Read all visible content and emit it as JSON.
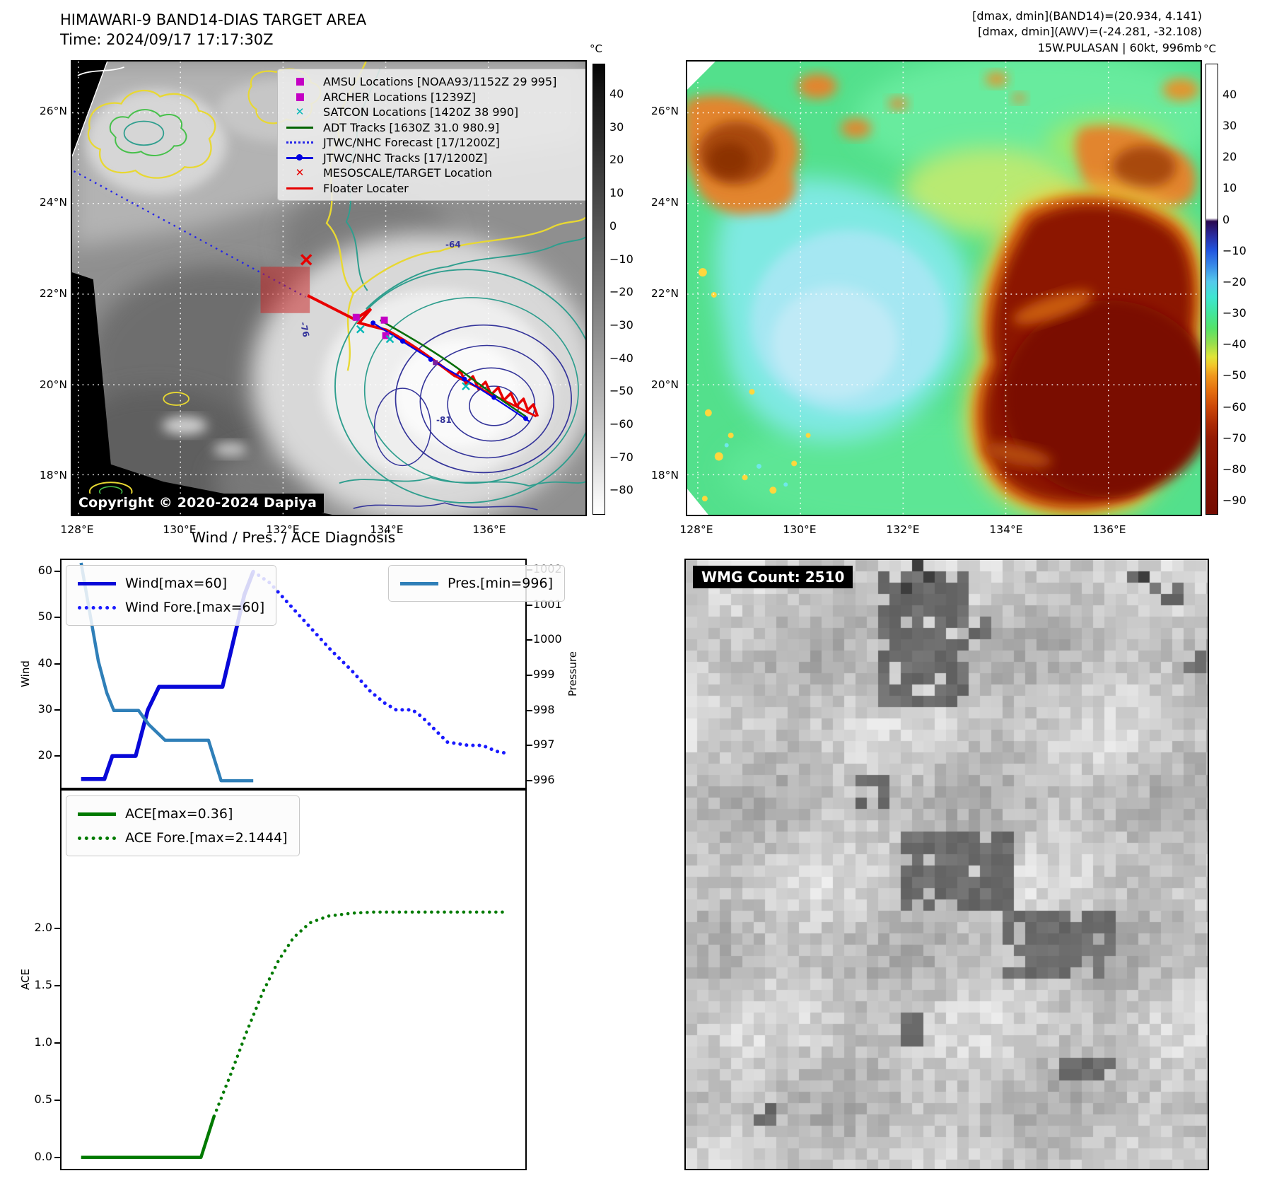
{
  "header_left": {
    "title": "HIMAWARI-9 BAND14-DIAS TARGET AREA",
    "time": "Time: 2024/09/17 17:17:30Z"
  },
  "header_right": {
    "line1": "[dmax, dmin](BAND14)=(20.934, 4.141)",
    "line2": "[dmax, dmin](AWV)=(-24.281, -32.108)",
    "line3": "15W.PULASAN | 60kt, 996mb"
  },
  "map_left": {
    "legend": [
      {
        "label": "AMSU Locations [NOAA93/1152Z 29 995]",
        "marker": "square",
        "color": "#c400c4"
      },
      {
        "label": "ARCHER Locations [1239Z]",
        "marker": "square",
        "color": "#c400c4"
      },
      {
        "label": "SATCON Locations [1420Z 38 990]",
        "marker": "x",
        "color": "#00b7b7"
      },
      {
        "label": "ADT Tracks [1630Z 31.0 980.9]",
        "marker": "line",
        "color": "#006400"
      },
      {
        "label": "JTWC/NHC Forecast [17/1200Z]",
        "marker": "dotted-line",
        "color": "#2525e8"
      },
      {
        "label": "JTWC/NHC Tracks [17/1200Z]",
        "marker": "line-dot",
        "color": "#0000e0"
      },
      {
        "label": "MESOSCALE/TARGET Location",
        "marker": "x",
        "color": "#e60000"
      },
      {
        "label": "Floater Locater",
        "marker": "line",
        "color": "#e60000"
      }
    ],
    "copyright": "Copyright © 2020-2024 Dapiya",
    "lat_ticks": [
      "26°N",
      "24°N",
      "22°N",
      "20°N",
      "18°N"
    ],
    "lon_ticks": [
      "128°E",
      "130°E",
      "132°E",
      "134°E",
      "136°E"
    ],
    "colorbar_unit": "°C",
    "colorbar_ticks": [
      "40",
      "30",
      "20",
      "10",
      "0",
      "−10",
      "−20",
      "−30",
      "−40",
      "−50",
      "−60",
      "−70",
      "−80"
    ],
    "contour_labels": [
      "-64",
      "-81",
      "-76"
    ]
  },
  "map_right": {
    "lat_ticks": [
      "26°N",
      "24°N",
      "22°N",
      "20°N",
      "18°N"
    ],
    "lon_ticks": [
      "128°E",
      "130°E",
      "132°E",
      "134°E",
      "136°E"
    ],
    "colorbar_unit": "°C",
    "colorbar_ticks": [
      "40",
      "30",
      "20",
      "10",
      "0",
      "−10",
      "−20",
      "−30",
      "−40",
      "−50",
      "−60",
      "−70",
      "−80",
      "−90"
    ]
  },
  "wmg": {
    "label": "WMG Count: 2510"
  },
  "chart_data": [
    {
      "type": "line",
      "title": "Wind / Pres. / ACE Diagnosis",
      "subplot": "wind-pressure",
      "ylabel_left": "Wind",
      "ylabel_right": "Pressure",
      "xlim": [
        0,
        1
      ],
      "ylim_left": [
        12.8,
        62.8
      ],
      "ylim_right": [
        995.76,
        1002.32
      ],
      "yticks_left": [
        20,
        30,
        40,
        50,
        60
      ],
      "yticks_right": [
        996,
        997,
        998,
        999,
        1000,
        1001,
        1002
      ],
      "grid": false,
      "legend_position": "upper-left and upper-right",
      "series": [
        {
          "name": "Wind[max=60]",
          "axis": "left",
          "style": "solid",
          "color": "#0808d8",
          "width": 5.5,
          "x": [
            0.045,
            0.095,
            0.112,
            0.162,
            0.188,
            0.212,
            0.348,
            0.395,
            0.414
          ],
          "y": [
            15,
            15,
            20,
            20,
            30,
            35,
            35,
            55,
            60
          ]
        },
        {
          "name": "Wind Fore.[max=60]",
          "axis": "left",
          "style": "dotted",
          "color": "#1a1aff",
          "width": 5,
          "x": [
            0.414,
            0.45,
            0.49,
            0.535,
            0.58,
            0.625,
            0.665,
            0.695,
            0.72,
            0.755,
            0.775,
            0.8,
            0.83,
            0.875,
            0.905,
            0.935,
            0.955
          ],
          "y": [
            60,
            57.5,
            53,
            48,
            43,
            38.5,
            34,
            31.5,
            30,
            30,
            28.5,
            26,
            23,
            22.3,
            22.3,
            21,
            20.6
          ]
        },
        {
          "name": "Pres.[min=996]",
          "axis": "right",
          "style": "solid",
          "color": "#2f7fb8",
          "width": 4.5,
          "x": [
            0.045,
            0.062,
            0.082,
            0.1,
            0.115,
            0.168,
            0.19,
            0.225,
            0.318,
            0.345,
            0.414
          ],
          "y": [
            1002.2,
            1000.9,
            999.4,
            998.5,
            998,
            998,
            997.6,
            997.15,
            997.15,
            996,
            996
          ]
        }
      ]
    },
    {
      "type": "line",
      "subplot": "ace",
      "ylabel_left": "ACE",
      "xlim": [
        0,
        1
      ],
      "ylim_left": [
        -0.113,
        3.22
      ],
      "yticks_left": [
        0,
        0.5,
        1,
        1.5,
        2
      ],
      "grid": false,
      "legend_position": "upper-left",
      "series": [
        {
          "name": "ACE[max=0.36]",
          "axis": "left",
          "style": "solid",
          "color": "#007a00",
          "width": 4.5,
          "x": [
            0.045,
            0.302,
            0.33
          ],
          "y": [
            0,
            0,
            0.36
          ]
        },
        {
          "name": "ACE Fore.[max=2.1444]",
          "axis": "left",
          "style": "dotted",
          "color": "#007a00",
          "width": 4.5,
          "x": [
            0.33,
            0.365,
            0.4,
            0.435,
            0.468,
            0.5,
            0.535,
            0.575,
            0.625,
            0.67,
            0.955
          ],
          "y": [
            0.36,
            0.72,
            1.1,
            1.45,
            1.72,
            1.92,
            2.05,
            2.11,
            2.135,
            2.1444,
            2.1444
          ]
        }
      ]
    }
  ]
}
